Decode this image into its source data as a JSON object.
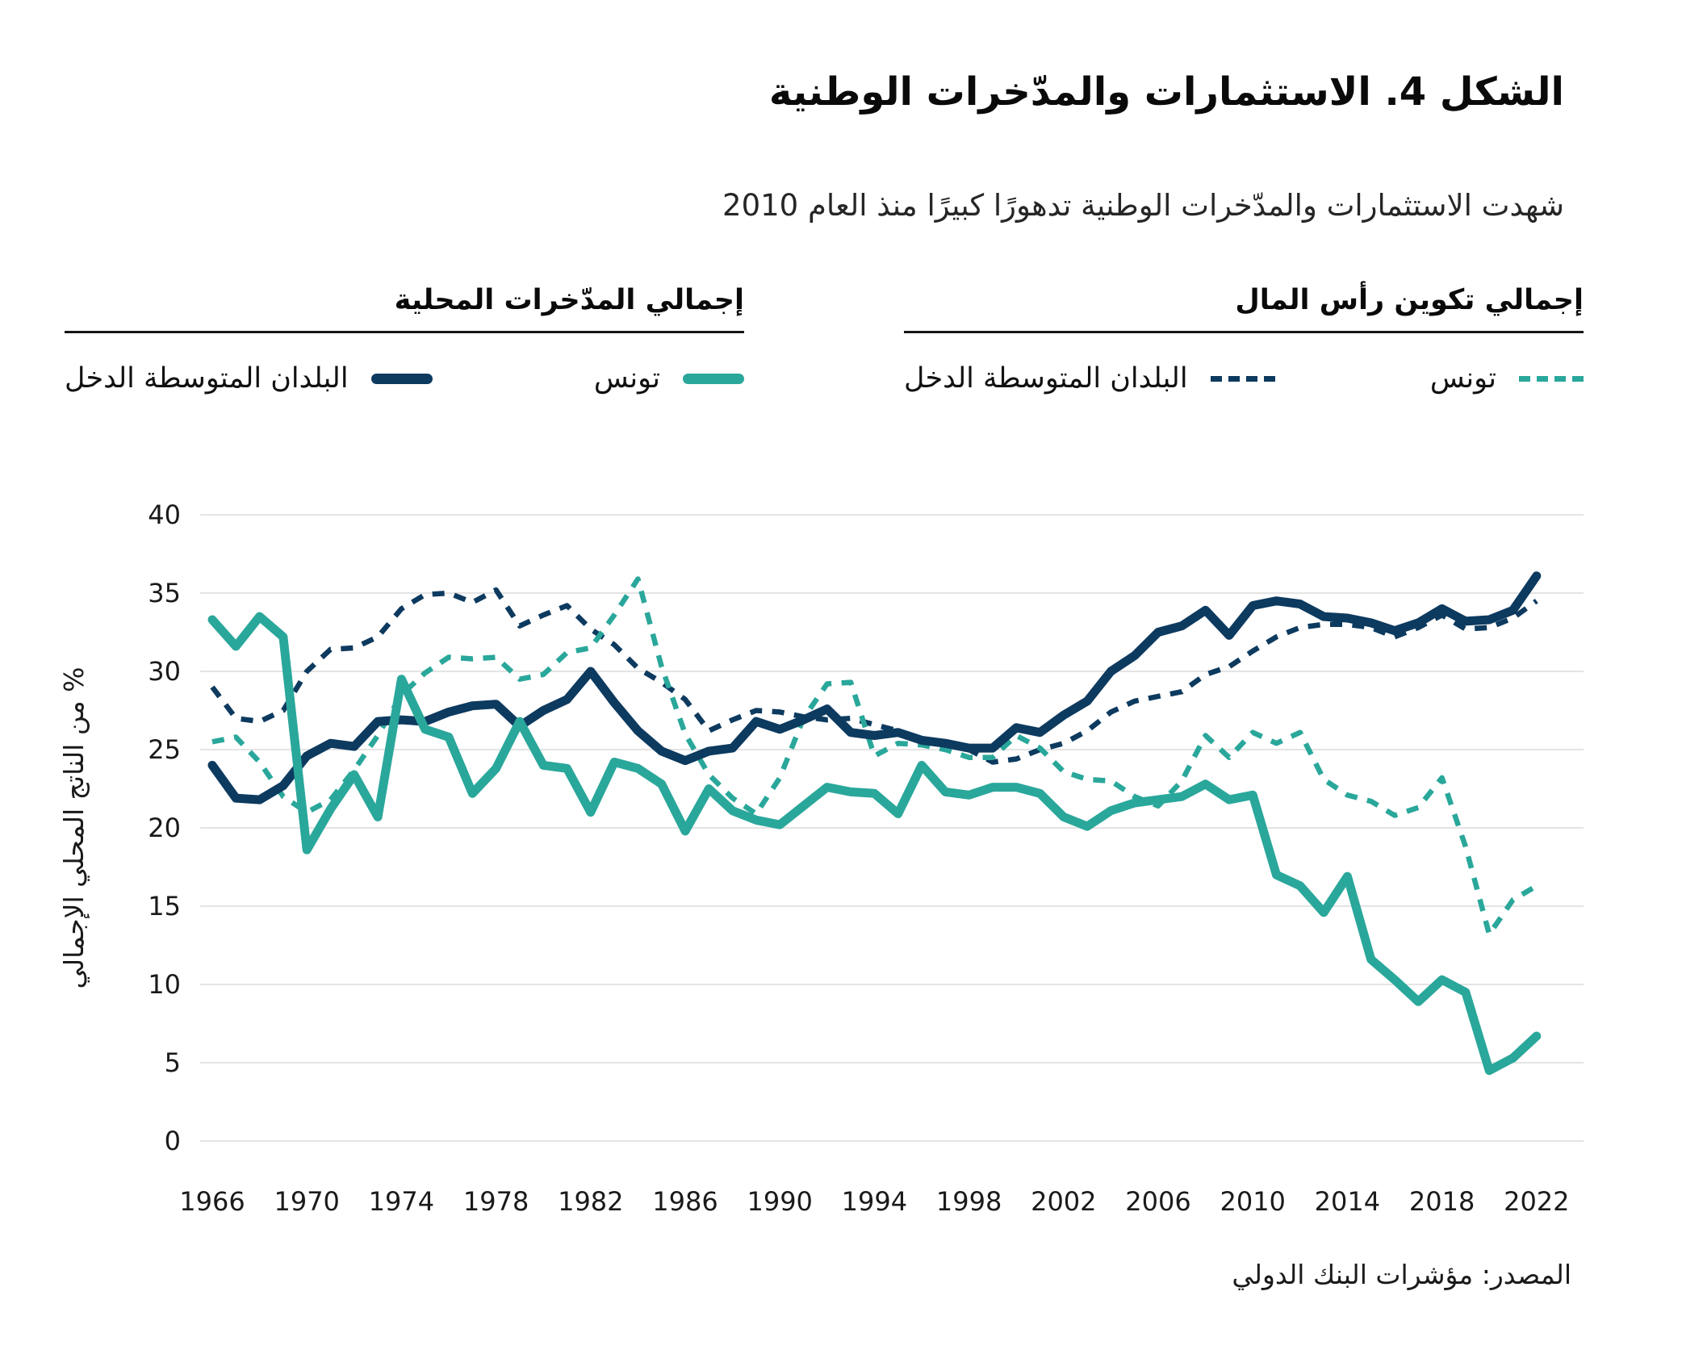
{
  "figure": {
    "title": "الشكل 4. الاستثمارات والمدّخرات الوطنية",
    "subtitle": "شهدت الاستثمارات والمدّخرات الوطنية تدهورًا كبيرًا منذ العام 2010",
    "source": "المصدر: مؤشرات البنك الدولي"
  },
  "colors": {
    "navy": "#0d3a5f",
    "teal": "#2aa79b",
    "grid": "#e4e4e4",
    "text": "#1a1a1a"
  },
  "legend": {
    "groups": [
      {
        "title": "إجمالي تكوين رأس المال",
        "style": "dashed",
        "entries": [
          {
            "label": "تونس",
            "color_key": "teal"
          },
          {
            "label": "البلدان المتوسطة الدخل",
            "color_key": "navy"
          }
        ]
      },
      {
        "title": "إجمالي المدّخرات المحلية",
        "style": "solid",
        "entries": [
          {
            "label": "تونس",
            "color_key": "teal"
          },
          {
            "label": "البلدان المتوسطة الدخل",
            "color_key": "navy"
          }
        ]
      }
    ]
  },
  "chart_data": {
    "type": "line",
    "title": "الشكل 4. الاستثمارات والمدّخرات الوطنية",
    "xlabel": "",
    "ylabel": "% من الناتج المحلي الإجمالي",
    "ylim": [
      0,
      40
    ],
    "yticks": [
      0,
      5,
      10,
      15,
      20,
      25,
      30,
      35,
      40
    ],
    "xticks": [
      1966,
      1970,
      1974,
      1978,
      1982,
      1986,
      1990,
      1994,
      1998,
      2002,
      2006,
      2010,
      2014,
      2018,
      2022
    ],
    "grid": "horizontal",
    "legend_position": "top",
    "x": [
      1966,
      1967,
      1968,
      1969,
      1970,
      1971,
      1972,
      1973,
      1974,
      1975,
      1976,
      1977,
      1978,
      1979,
      1980,
      1981,
      1982,
      1983,
      1984,
      1985,
      1986,
      1987,
      1988,
      1989,
      1990,
      1991,
      1992,
      1993,
      1994,
      1995,
      1996,
      1997,
      1998,
      1999,
      2000,
      2001,
      2002,
      2003,
      2004,
      2005,
      2006,
      2007,
      2008,
      2009,
      2010,
      2011,
      2012,
      2013,
      2014,
      2015,
      2016,
      2017,
      2018,
      2019,
      2020,
      2021,
      2022
    ],
    "series": [
      {
        "key": "mic-capital-formation",
        "name": "البلدان المتوسطة الدخل — إجمالي تكوين رأس المال",
        "group": "إجمالي تكوين رأس المال",
        "country": "البلدان المتوسطة الدخل",
        "style": "dashed",
        "color_key": "navy",
        "values": [
          29.0,
          27.0,
          26.8,
          27.5,
          30.0,
          31.4,
          31.5,
          32.2,
          34.0,
          34.9,
          35.0,
          34.4,
          35.2,
          32.9,
          33.6,
          34.2,
          32.7,
          31.7,
          30.2,
          29.3,
          28.2,
          26.2,
          26.9,
          27.5,
          27.4,
          27.1,
          26.9,
          27.0,
          26.6,
          26.2,
          25.7,
          25.3,
          25.0,
          24.2,
          24.4,
          25.0,
          25.4,
          26.2,
          27.4,
          28.1,
          28.4,
          28.7,
          29.8,
          30.3,
          31.3,
          32.2,
          32.8,
          33.0,
          33.0,
          32.8,
          32.2,
          32.8,
          33.6,
          32.7,
          32.8,
          33.4,
          34.5
        ]
      },
      {
        "key": "tunisia-capital-formation",
        "name": "تونس — إجمالي تكوين رأس المال",
        "group": "إجمالي تكوين رأس المال",
        "country": "تونس",
        "style": "dashed",
        "color_key": "teal",
        "values": [
          25.5,
          25.8,
          24.2,
          22.0,
          21.0,
          21.8,
          23.7,
          25.9,
          28.5,
          29.9,
          30.9,
          30.8,
          30.9,
          29.5,
          29.8,
          31.2,
          31.5,
          33.6,
          35.9,
          30.3,
          26.0,
          23.4,
          21.9,
          20.9,
          23.2,
          27.0,
          29.2,
          29.3,
          24.6,
          25.4,
          25.3,
          25.0,
          24.5,
          24.5,
          25.9,
          25.1,
          23.6,
          23.1,
          23.0,
          22.0,
          21.4,
          23.0,
          25.9,
          24.5,
          26.1,
          25.4,
          26.1,
          23.1,
          22.1,
          21.7,
          20.8,
          21.3,
          23.2,
          18.8,
          13.2,
          15.4,
          16.3
        ]
      },
      {
        "key": "mic-savings",
        "name": "البلدان المتوسطة الدخل — إجمالي المدّخرات المحلية",
        "group": "إجمالي المدّخرات المحلية",
        "country": "البلدان المتوسطة الدخل",
        "style": "solid",
        "color_key": "navy",
        "values": [
          24.0,
          21.9,
          21.8,
          22.7,
          24.6,
          25.4,
          25.2,
          26.8,
          26.9,
          26.8,
          27.4,
          27.8,
          27.9,
          26.5,
          27.5,
          28.2,
          30.0,
          28.0,
          26.2,
          24.9,
          24.3,
          24.9,
          25.1,
          26.8,
          26.3,
          26.9,
          27.6,
          26.1,
          25.9,
          26.1,
          25.6,
          25.4,
          25.1,
          25.1,
          26.4,
          26.1,
          27.2,
          28.1,
          30.0,
          31.0,
          32.5,
          32.9,
          33.9,
          32.3,
          34.2,
          34.5,
          34.3,
          33.5,
          33.4,
          33.1,
          32.6,
          33.1,
          34.0,
          33.2,
          33.3,
          33.9,
          36.1
        ]
      },
      {
        "key": "tunisia-savings",
        "name": "تونس — إجمالي المدّخرات المحلية",
        "group": "إجمالي المدّخرات المحلية",
        "country": "تونس",
        "style": "solid",
        "color_key": "teal",
        "values": [
          33.3,
          31.6,
          33.5,
          32.2,
          18.6,
          21.2,
          23.4,
          20.7,
          29.5,
          26.3,
          25.8,
          22.2,
          23.8,
          26.8,
          24.0,
          23.8,
          21.0,
          24.2,
          23.8,
          22.8,
          19.8,
          22.5,
          21.1,
          20.5,
          20.2,
          21.4,
          22.6,
          22.3,
          22.2,
          20.9,
          24.0,
          22.3,
          22.1,
          22.6,
          22.6,
          22.2,
          20.7,
          20.1,
          21.1,
          21.6,
          21.8,
          22.0,
          22.8,
          21.8,
          22.1,
          17.0,
          16.3,
          14.6,
          16.9,
          11.6,
          10.3,
          8.9,
          10.3,
          9.5,
          4.5,
          5.3,
          6.7
        ]
      }
    ]
  }
}
